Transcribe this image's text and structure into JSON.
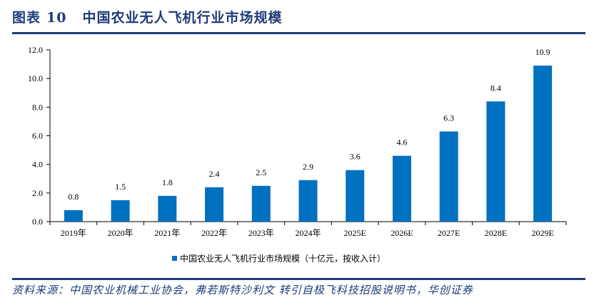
{
  "header": {
    "figure_label": "图表",
    "figure_number": "10",
    "title": "中国农业无人飞机行业市场规模"
  },
  "source": "资料来源：中国农业机械工业协会，弗若斯特沙利文 转引自极飞科技招股说明书，华创证券",
  "colors": {
    "bar": "#0070c0",
    "rule": "#1f3b78"
  },
  "chart_data": {
    "type": "bar",
    "title": "中国农业无人飞机行业市场规模",
    "categories": [
      "2019年",
      "2020年",
      "2021年",
      "2022年",
      "2023年",
      "2024年",
      "2025E",
      "2026E",
      "2027E",
      "2028E",
      "2029E"
    ],
    "series": [
      {
        "name": "中国农业无人飞机行业市场规模（十亿元，按收入计）",
        "values": [
          0.8,
          1.5,
          1.8,
          2.4,
          2.5,
          2.9,
          3.6,
          4.6,
          6.3,
          8.4,
          10.9
        ],
        "labels": [
          "0.8",
          "1.5",
          "1.8",
          "2.4",
          "2.5",
          "2.9",
          "3.6",
          "4.6",
          "6.3",
          "8.4",
          "10.9"
        ]
      }
    ],
    "xlabel": "",
    "ylabel": "",
    "ylim": [
      0,
      12
    ],
    "yticks": [
      "0.0",
      "2.0",
      "4.0",
      "6.0",
      "8.0",
      "10.0",
      "12.0"
    ],
    "grid": false,
    "legend": "bottom-center"
  }
}
